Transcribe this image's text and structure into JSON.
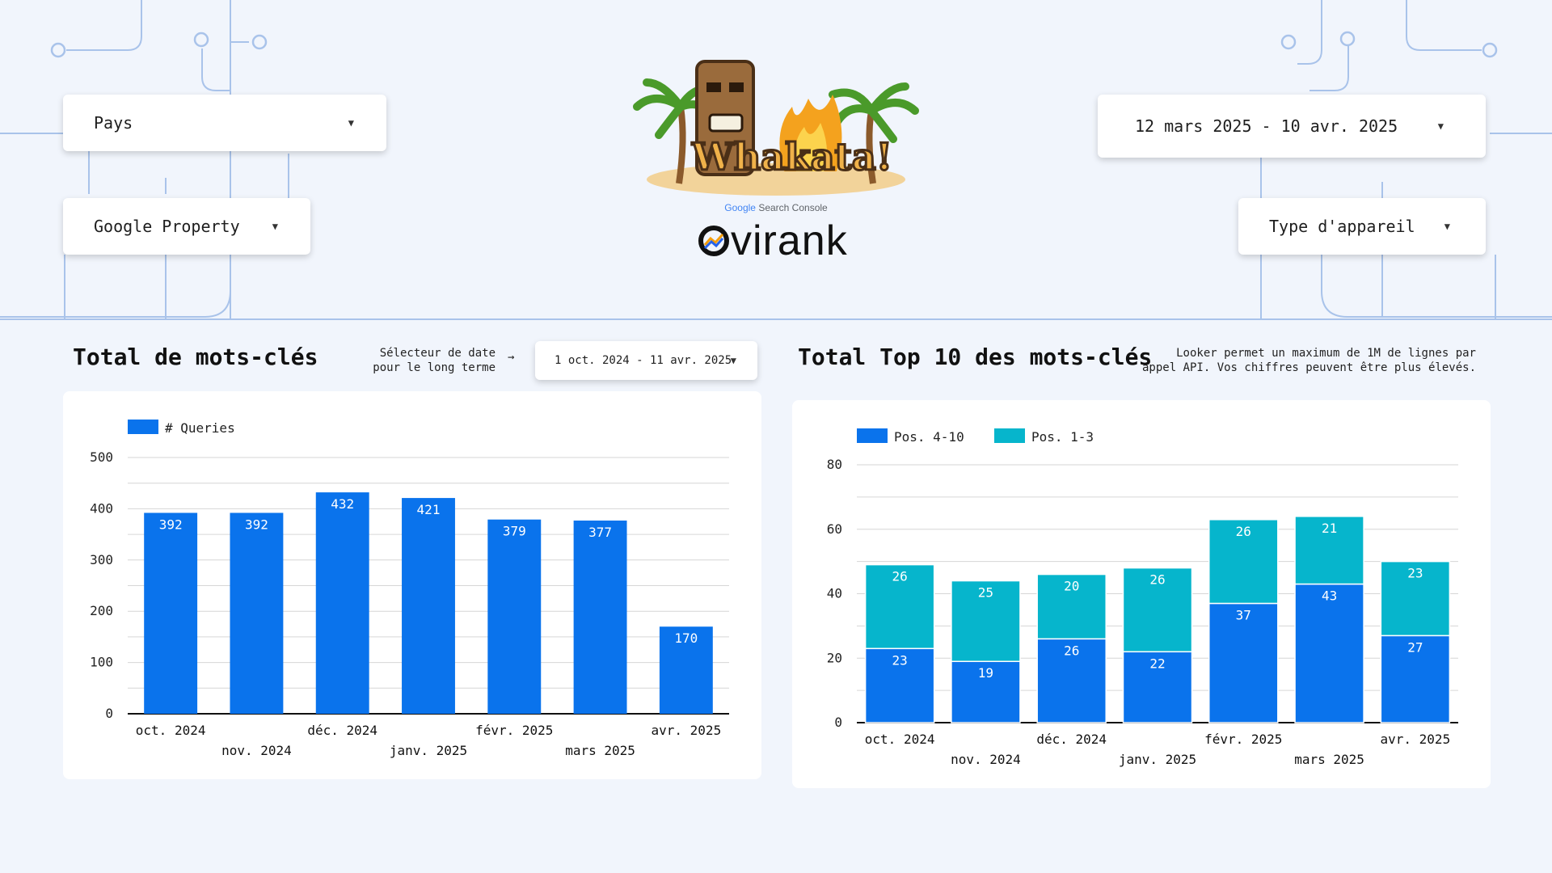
{
  "filters": {
    "country": {
      "label": "Pays"
    },
    "property": {
      "label": "Google Property"
    },
    "date_range": {
      "label": "12 mars 2025 - 10 avr. 2025"
    },
    "device": {
      "label": "Type d'appareil"
    }
  },
  "branding": {
    "gsc_caption_google": "Google",
    "gsc_caption_rest": " Search Console",
    "brand_name": "virank",
    "logo_text": "Whakata!"
  },
  "left_section": {
    "title": "Total de mots-clés",
    "selector_label_line1": "Sélecteur de date",
    "selector_label_line2": "pour le long terme",
    "selector_arrow": "→",
    "selector_value": "1 oct. 2024 - 11 avr. 2025"
  },
  "right_section": {
    "title": "Total Top 10 des mots-clés",
    "note_line1": "Looker permet un maximum de 1M de lignes par",
    "note_line2": "appel API. Vos chiffres peuvent être plus élevés."
  },
  "colors": {
    "bar_blue": "#0a73ec",
    "bar_teal": "#06b5cc",
    "grid": "#d6d6d6"
  },
  "chart_data": [
    {
      "type": "bar",
      "categories": [
        "oct. 2024",
        "nov. 2024",
        "déc. 2024",
        "janv. 2025",
        "févr. 2025",
        "mars 2025",
        "avr. 2025"
      ],
      "series": [
        {
          "name": "# Queries",
          "values": [
            392,
            392,
            432,
            421,
            379,
            377,
            170
          ]
        }
      ],
      "ylim": [
        0,
        500
      ],
      "yticks": [
        0,
        100,
        200,
        300,
        400,
        500
      ],
      "legend": "top-left",
      "grid": true
    },
    {
      "type": "bar",
      "stacked": true,
      "categories": [
        "oct. 2024",
        "nov. 2024",
        "déc. 2024",
        "janv. 2025",
        "févr. 2025",
        "mars 2025",
        "avr. 2025"
      ],
      "series": [
        {
          "name": "Pos. 4-10",
          "values": [
            23,
            19,
            26,
            22,
            37,
            43,
            27
          ]
        },
        {
          "name": "Pos. 1-3",
          "values": [
            26,
            25,
            20,
            26,
            26,
            21,
            23
          ]
        }
      ],
      "ylim": [
        0,
        80
      ],
      "yticks": [
        0,
        20,
        40,
        60,
        80
      ],
      "legend": "top-left",
      "grid": true
    }
  ]
}
